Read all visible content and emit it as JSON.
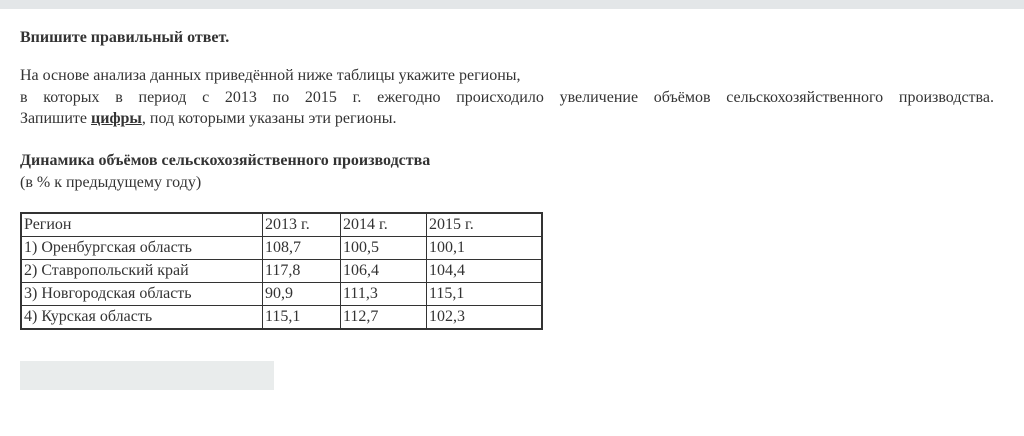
{
  "task": {
    "instruction": "Впишите правильный ответ.",
    "line1": "На основе анализа данных приведённой ниже таблицы укажите регионы,",
    "line2": "в которых в период с 2013 по 2015 г. ежегодно происходило увеличение объёмов сельскохозяйственного производства.",
    "line3_pre": "Запишите ",
    "line3_bold": "цифры",
    "line3_post": ", под которыми указаны эти регионы.",
    "table_title": "Динамика объёмов сельскохозяйственного производства",
    "table_subtitle": "(в % к предыдущему году)"
  },
  "table": {
    "headers": [
      "Регион",
      "2013 г.",
      "2014 г.",
      "2015 г."
    ],
    "rows": [
      [
        "1) Оренбургская область",
        "108,7",
        "100,5",
        "100,1"
      ],
      [
        "2) Ставропольский край",
        "117,8",
        "106,4",
        "104,4"
      ],
      [
        "3) Новгородская область",
        "90,9",
        "111,3",
        "115,1"
      ],
      [
        "4) Курская область",
        "115,1",
        "112,7",
        "102,3"
      ]
    ]
  },
  "answer": {
    "value": ""
  },
  "colors": {
    "topbar": "#e3e6e8",
    "input_bg": "#e9ecec",
    "text": "#333333"
  }
}
